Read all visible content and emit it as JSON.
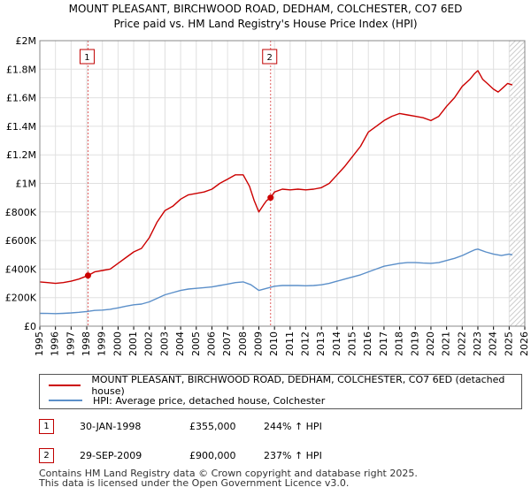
{
  "chart_data": {
    "type": "line",
    "title": "MOUNT PLEASANT, BIRCHWOOD ROAD, DEDHAM, COLCHESTER, CO7 6ED",
    "subtitle": "Price paid vs. HM Land Registry's House Price Index (HPI)",
    "xlabel": "",
    "ylabel": "",
    "xlim": [
      1995,
      2026
    ],
    "ylim": [
      0,
      2000000
    ],
    "x_ticks": [
      "1995",
      "1996",
      "1997",
      "1998",
      "1999",
      "2000",
      "2001",
      "2002",
      "2003",
      "2004",
      "2005",
      "2006",
      "2007",
      "2008",
      "2009",
      "2010",
      "2011",
      "2012",
      "2013",
      "2014",
      "2015",
      "2016",
      "2017",
      "2018",
      "2019",
      "2020",
      "2021",
      "2022",
      "2023",
      "2024",
      "2025",
      "2026"
    ],
    "y_ticks": [
      {
        "value": 0,
        "label": "£0"
      },
      {
        "value": 200000,
        "label": "£200K"
      },
      {
        "value": 400000,
        "label": "£400K"
      },
      {
        "value": 600000,
        "label": "£600K"
      },
      {
        "value": 800000,
        "label": "£800K"
      },
      {
        "value": 1000000,
        "label": "£1M"
      },
      {
        "value": 1200000,
        "label": "£1.2M"
      },
      {
        "value": 1400000,
        "label": "£1.4M"
      },
      {
        "value": 1600000,
        "label": "£1.6M"
      },
      {
        "value": 1800000,
        "label": "£1.8M"
      },
      {
        "value": 2000000,
        "label": "£2M"
      }
    ],
    "grid": true,
    "series": [
      {
        "name": "MOUNT PLEASANT, BIRCHWOOD ROAD, DEDHAM, COLCHESTER, CO7 6ED (detached house)",
        "color": "#cc0000",
        "x": [
          1995.0,
          1995.5,
          1996.0,
          1996.5,
          1997.0,
          1997.5,
          1998.08,
          1998.5,
          1999.0,
          1999.5,
          2000.0,
          2000.5,
          2001.0,
          2001.5,
          2002.0,
          2002.5,
          2003.0,
          2003.5,
          2004.0,
          2004.5,
          2005.0,
          2005.5,
          2006.0,
          2006.5,
          2007.0,
          2007.5,
          2008.0,
          2008.4,
          2008.7,
          2009.0,
          2009.3,
          2009.5,
          2009.75,
          2010.0,
          2010.5,
          2011.0,
          2011.5,
          2012.0,
          2012.5,
          2013.0,
          2013.5,
          2014.0,
          2014.5,
          2015.0,
          2015.5,
          2016.0,
          2016.5,
          2017.0,
          2017.5,
          2018.0,
          2018.5,
          2019.0,
          2019.5,
          2020.0,
          2020.5,
          2021.0,
          2021.5,
          2022.0,
          2022.5,
          2022.8,
          2023.0,
          2023.3,
          2023.6,
          2024.0,
          2024.3,
          2024.6,
          2024.9,
          2025.2
        ],
        "values": [
          310000,
          305000,
          300000,
          305000,
          315000,
          330000,
          355000,
          380000,
          390000,
          400000,
          440000,
          480000,
          520000,
          545000,
          620000,
          730000,
          810000,
          840000,
          890000,
          920000,
          930000,
          940000,
          960000,
          1000000,
          1030000,
          1060000,
          1060000,
          980000,
          880000,
          800000,
          850000,
          880000,
          900000,
          940000,
          960000,
          955000,
          960000,
          955000,
          960000,
          970000,
          1000000,
          1060000,
          1120000,
          1190000,
          1260000,
          1360000,
          1400000,
          1440000,
          1470000,
          1490000,
          1480000,
          1470000,
          1460000,
          1440000,
          1470000,
          1540000,
          1600000,
          1680000,
          1730000,
          1770000,
          1790000,
          1730000,
          1700000,
          1660000,
          1640000,
          1670000,
          1700000,
          1690000
        ]
      },
      {
        "name": "HPI: Average price, detached house, Colchester",
        "color": "#5b8fc9",
        "x": [
          1995.0,
          1995.5,
          1996.0,
          1996.5,
          1997.0,
          1997.5,
          1998.0,
          1998.5,
          1999.0,
          1999.5,
          2000.0,
          2000.5,
          2001.0,
          2001.5,
          2002.0,
          2002.5,
          2003.0,
          2003.5,
          2004.0,
          2004.5,
          2005.0,
          2005.5,
          2006.0,
          2006.5,
          2007.0,
          2007.5,
          2008.0,
          2008.5,
          2009.0,
          2009.5,
          2010.0,
          2010.5,
          2011.0,
          2011.5,
          2012.0,
          2012.5,
          2013.0,
          2013.5,
          2014.0,
          2014.5,
          2015.0,
          2015.5,
          2016.0,
          2016.5,
          2017.0,
          2017.5,
          2018.0,
          2018.5,
          2019.0,
          2019.5,
          2020.0,
          2020.5,
          2021.0,
          2021.5,
          2022.0,
          2022.5,
          2022.8,
          2023.0,
          2023.5,
          2024.0,
          2024.5,
          2025.0,
          2025.2
        ],
        "values": [
          90000,
          89000,
          88000,
          90000,
          93000,
          97000,
          103000,
          110000,
          113000,
          118000,
          128000,
          140000,
          150000,
          155000,
          170000,
          195000,
          220000,
          235000,
          250000,
          260000,
          265000,
          270000,
          275000,
          285000,
          295000,
          305000,
          310000,
          290000,
          250000,
          265000,
          280000,
          285000,
          285000,
          285000,
          283000,
          285000,
          290000,
          300000,
          315000,
          330000,
          345000,
          360000,
          380000,
          400000,
          420000,
          430000,
          440000,
          445000,
          445000,
          442000,
          440000,
          445000,
          460000,
          475000,
          495000,
          520000,
          535000,
          540000,
          520000,
          505000,
          495000,
          505000,
          500000
        ]
      }
    ],
    "annotations": [
      {
        "label": "1",
        "x": 1998.08,
        "value": 355000
      },
      {
        "label": "2",
        "x": 2009.75,
        "value": 900000
      }
    ],
    "hatch_from_x": 2025.0
  },
  "legend": {
    "series_red": "MOUNT PLEASANT, BIRCHWOOD ROAD, DEDHAM, COLCHESTER, CO7 6ED (detached house)",
    "series_blue": "HPI: Average price, detached house, Colchester"
  },
  "sales": [
    {
      "num": "1",
      "date": "30-JAN-1998",
      "price": "£355,000",
      "hpi": "244% ↑ HPI"
    },
    {
      "num": "2",
      "date": "29-SEP-2009",
      "price": "£900,000",
      "hpi": "237% ↑ HPI"
    }
  ],
  "footer": {
    "line1": "Contains HM Land Registry data © Crown copyright and database right 2025.",
    "line2": "This data is licensed under the Open Government Licence v3.0."
  },
  "colors": {
    "red": "#cc0000",
    "blue": "#5b8fc9",
    "grid": "#e0e0e0",
    "plot_bg": "#ffffff",
    "outside_bg": "#e8eefb"
  }
}
